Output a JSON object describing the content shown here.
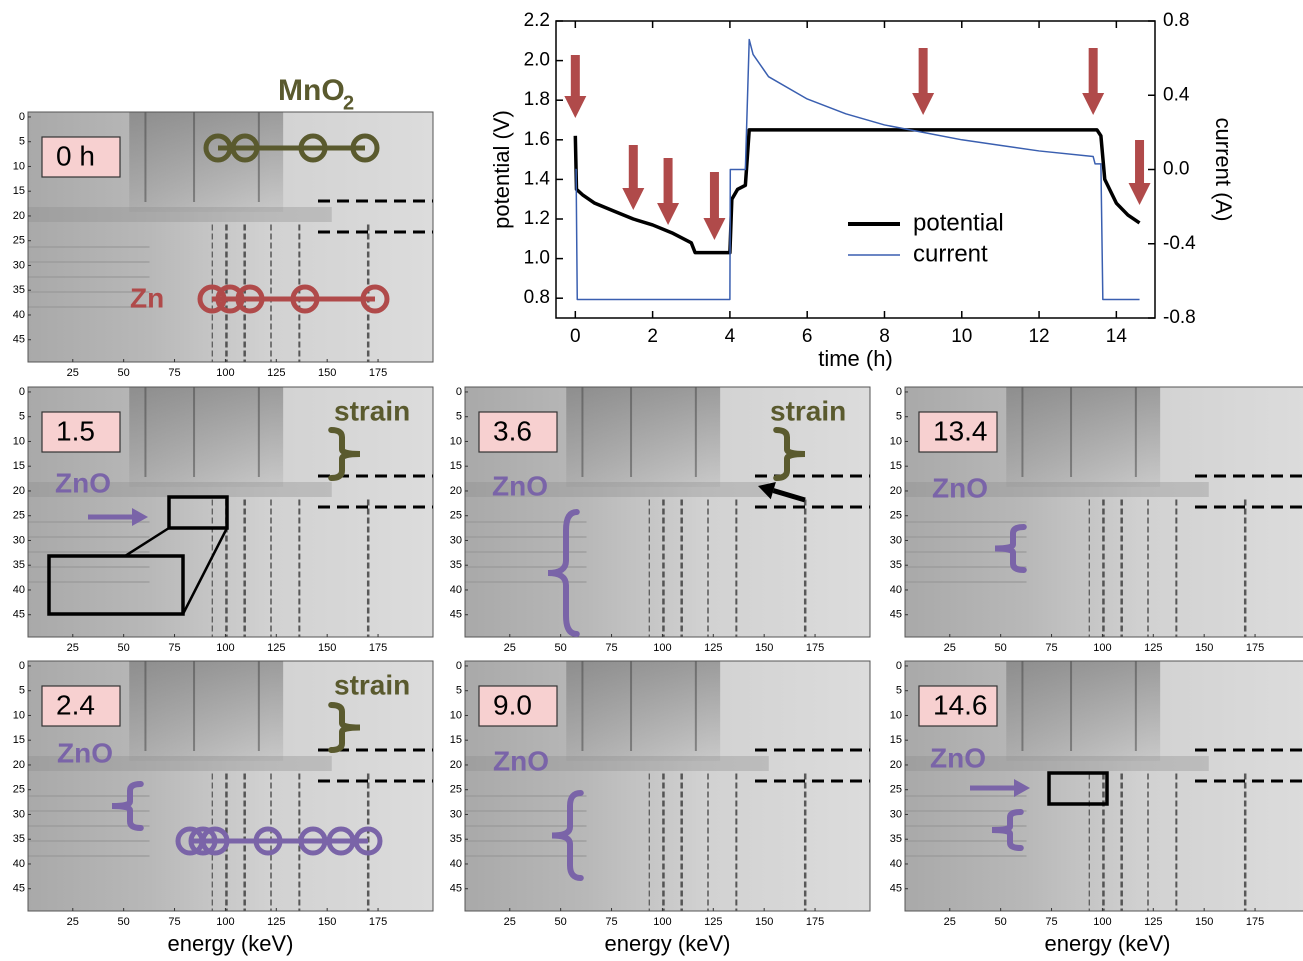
{
  "chart_data": [
    {
      "type": "line",
      "xlabel": "time (h)",
      "ylabel": "potential (V)",
      "y2label": "current (A)",
      "xlim": [
        -0.5,
        15
      ],
      "ylim": [
        0.7,
        2.2
      ],
      "y2lim": [
        -0.8,
        0.8
      ],
      "xticks": [
        0,
        2,
        4,
        6,
        8,
        10,
        12,
        14
      ],
      "yticks": [
        0.8,
        {
          "value": 1,
          "label": "1.0"
        },
        1.2,
        1.4,
        1.6,
        1.8,
        {
          "value": 2,
          "label": "2.0"
        },
        2.2
      ],
      "y2ticks": [
        -0.8,
        -0.4,
        {
          "value": 0,
          "label": "0.0"
        },
        0.4,
        0.8
      ],
      "legend": "lower right",
      "series": [
        {
          "name": "potential",
          "color": "#000000",
          "x": [
            0,
            0.03,
            0.2,
            0.5,
            1,
            1.5,
            2,
            2.5,
            3,
            3.1,
            3.5,
            4,
            4.05,
            4.2,
            4.4,
            4.5,
            13.5,
            13.6,
            13.7,
            14,
            14.3,
            14.6
          ],
          "values": [
            1.62,
            1.35,
            1.32,
            1.28,
            1.24,
            1.2,
            1.17,
            1.13,
            1.08,
            1.03,
            1.03,
            1.03,
            1.3,
            1.35,
            1.37,
            1.65,
            1.65,
            1.62,
            1.4,
            1.28,
            1.22,
            1.18
          ]
        },
        {
          "name": "current",
          "color": "#3a5fb0",
          "axis": "y2",
          "x": [
            0,
            0.02,
            0.05,
            4,
            4.01,
            4.4,
            4.5,
            4.6,
            5,
            6,
            7,
            8,
            9,
            10,
            11,
            12,
            13.4,
            13.45,
            13.6,
            13.65,
            14.6
          ],
          "values": [
            0,
            0,
            -0.7,
            -0.7,
            0,
            0,
            0.7,
            0.62,
            0.5,
            0.38,
            0.3,
            0.24,
            0.2,
            0.16,
            0.13,
            0.1,
            0.07,
            0.03,
            0.03,
            -0.7,
            -0.7
          ]
        }
      ],
      "arrows_x": [
        0,
        1.5,
        2.4,
        3.6,
        9.0,
        13.4,
        14.6
      ],
      "arrow_color": "#b04a4a"
    },
    {
      "type": "image",
      "label": "0 h",
      "title": "MnO",
      "title_sub": "2",
      "texts": [
        "Zn"
      ],
      "xlim": [
        3,
        202
      ],
      "ylim": [
        -1,
        49.5
      ],
      "xticks": [
        25,
        50,
        75,
        100,
        125,
        150,
        175
      ],
      "yticks": [
        0,
        5,
        10,
        15,
        20,
        25,
        30,
        35,
        40,
        45
      ]
    },
    {
      "type": "image",
      "label": "1.5",
      "texts": [
        "strain",
        "ZnO"
      ],
      "xlim": [
        3,
        202
      ],
      "ylim": [
        -1,
        49.5
      ],
      "xticks": [
        25,
        50,
        75,
        100,
        125,
        150,
        175
      ],
      "yticks": [
        0,
        5,
        10,
        15,
        20,
        25,
        30,
        35,
        40,
        45
      ]
    },
    {
      "type": "image",
      "label": "3.6",
      "texts": [
        "strain",
        "ZnO"
      ],
      "xlim": [
        3,
        202
      ],
      "ylim": [
        -1,
        49.5
      ],
      "xticks": [
        25,
        50,
        75,
        100,
        125,
        150,
        175
      ],
      "yticks": [
        0,
        5,
        10,
        15,
        20,
        25,
        30,
        35,
        40,
        45
      ]
    },
    {
      "type": "image",
      "label": "13.4",
      "texts": [
        "ZnO"
      ],
      "xlim": [
        3,
        202
      ],
      "ylim": [
        -1,
        49.5
      ],
      "xticks": [
        25,
        50,
        75,
        100,
        125,
        150,
        175
      ],
      "yticks": [
        0,
        5,
        10,
        15,
        20,
        25,
        30,
        35,
        40,
        45
      ]
    },
    {
      "type": "image",
      "label": "2.4",
      "texts": [
        "strain",
        "ZnO"
      ],
      "xlabel": "energy (keV)",
      "xlim": [
        3,
        202
      ],
      "ylim": [
        -1,
        49.5
      ],
      "xticks": [
        25,
        50,
        75,
        100,
        125,
        150,
        175
      ],
      "yticks": [
        0,
        5,
        10,
        15,
        20,
        25,
        30,
        35,
        40,
        45
      ]
    },
    {
      "type": "image",
      "label": "9.0",
      "texts": [
        "ZnO"
      ],
      "xlabel": "energy (keV)",
      "xlim": [
        3,
        202
      ],
      "ylim": [
        -1,
        49.5
      ],
      "xticks": [
        25,
        50,
        75,
        100,
        125,
        150,
        175
      ],
      "yticks": [
        0,
        5,
        10,
        15,
        20,
        25,
        30,
        35,
        40,
        45
      ]
    },
    {
      "type": "image",
      "label": "14.6",
      "texts": [
        "ZnO"
      ],
      "xlabel": "energy (keV)",
      "xlim": [
        3,
        202
      ],
      "ylim": [
        -1,
        49.5
      ],
      "xticks": [
        25,
        50,
        75,
        100,
        125,
        150,
        175
      ],
      "yticks": [
        0,
        5,
        10,
        15,
        20,
        25,
        30,
        35,
        40,
        45
      ]
    }
  ]
}
